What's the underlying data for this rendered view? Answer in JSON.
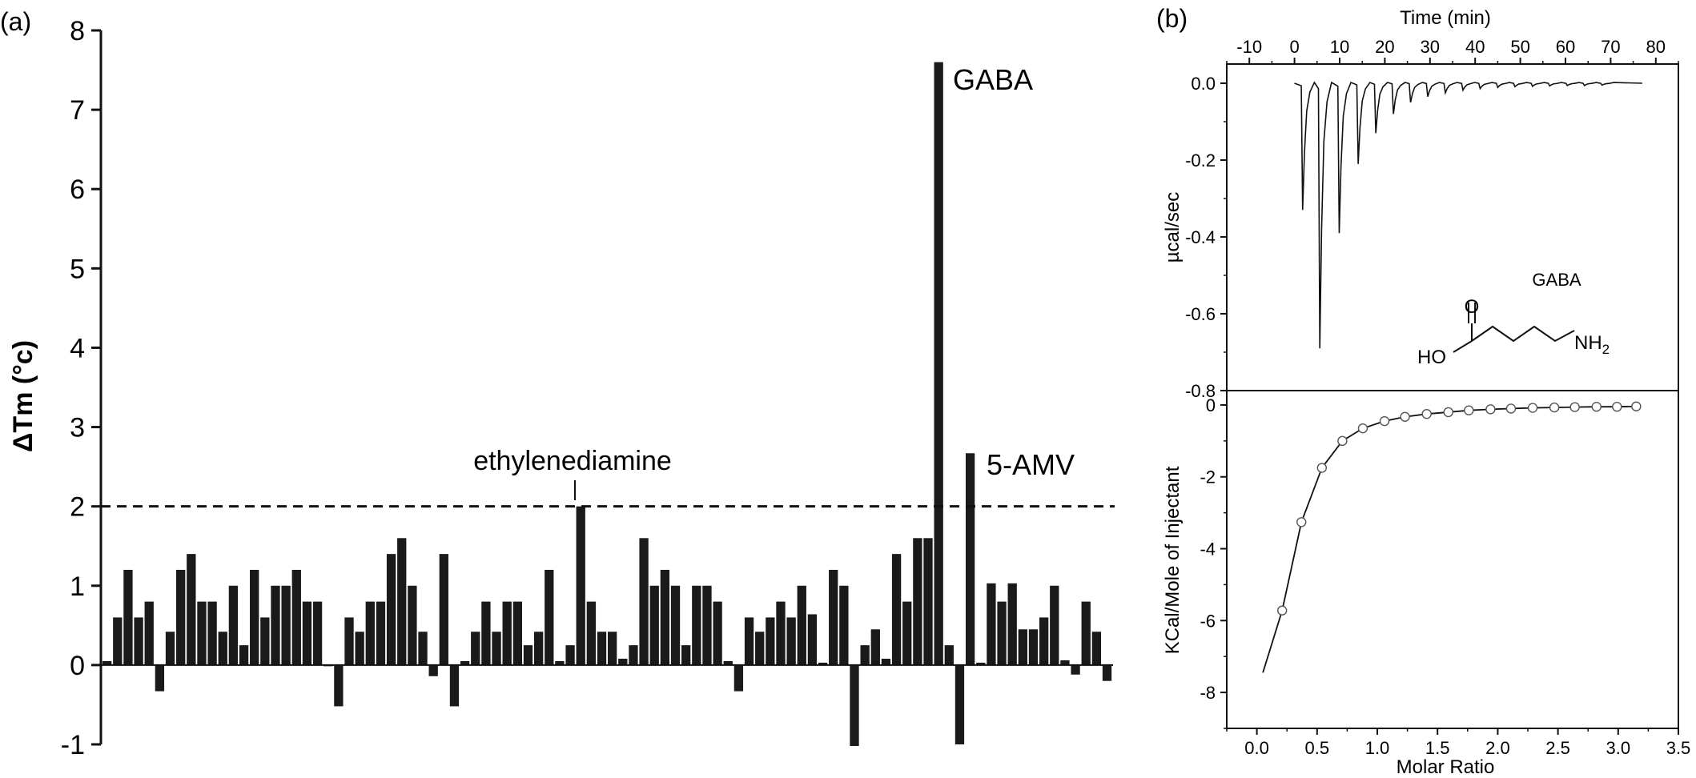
{
  "colors": {
    "ink": "#111111",
    "bar": "#1a1a1a"
  },
  "panel_a": {
    "tag": "(a)",
    "ylabel": "ΔTm (°c)",
    "annotations": {
      "gaba": "GABA",
      "amv": "5-AMV",
      "ethylenediamine": "ethylenediamine"
    }
  },
  "panel_b": {
    "tag": "(b)",
    "molecule_label": "GABA",
    "structure": {
      "o": "O",
      "ho": "HO",
      "nh2": "NH2"
    }
  },
  "chart_data": [
    {
      "type": "bar",
      "title": "",
      "xlabel": "",
      "ylabel": "ΔTm (°c)",
      "ylim": [
        -1,
        8
      ],
      "yticks": [
        -1,
        0,
        1,
        2,
        3,
        4,
        5,
        6,
        7,
        8
      ],
      "threshold": 2,
      "grid": false,
      "values": [
        0.05,
        0.6,
        1.2,
        0.6,
        0.8,
        -0.33,
        0.42,
        1.2,
        1.4,
        0.8,
        0.8,
        0.42,
        1.0,
        0.25,
        1.2,
        0.6,
        1.0,
        1.0,
        1.2,
        0.8,
        0.8,
        0.0,
        -0.52,
        0.6,
        0.42,
        0.8,
        0.8,
        1.4,
        1.6,
        1.0,
        0.42,
        -0.14,
        1.4,
        -0.52,
        0.05,
        0.42,
        0.8,
        0.42,
        0.8,
        0.8,
        0.25,
        0.42,
        1.2,
        0.05,
        0.25,
        2.0,
        0.8,
        0.42,
        0.42,
        0.08,
        0.25,
        1.6,
        1.0,
        1.2,
        1.0,
        0.25,
        1.0,
        1.0,
        0.8,
        0.05,
        -0.33,
        0.6,
        0.42,
        0.6,
        0.8,
        0.6,
        1.0,
        0.64,
        0.03,
        1.2,
        1.0,
        -1.02,
        0.25,
        0.45,
        0.08,
        1.4,
        0.8,
        1.6,
        1.6,
        7.6,
        0.25,
        -1.0,
        2.67,
        0.03,
        1.03,
        0.8,
        1.03,
        0.45,
        0.45,
        0.6,
        1.0,
        0.06,
        -0.12,
        0.8,
        0.42,
        -0.2
      ],
      "annotations": [
        {
          "text": "GABA",
          "index": 79
        },
        {
          "text": "5-AMV",
          "index": 82
        },
        {
          "text": "ethylenediamine",
          "index": 45
        }
      ]
    },
    {
      "type": "line",
      "title": "",
      "xlabel": "Time (min)",
      "ylabel": "µcal/sec",
      "xlim": [
        -15,
        85
      ],
      "ylim": [
        -0.8,
        0.05
      ],
      "xticks": [
        -10,
        0,
        10,
        20,
        30,
        40,
        50,
        60,
        70,
        80
      ],
      "yticks": [
        0.0,
        -0.2,
        -0.4,
        -0.6,
        -0.8
      ],
      "ytick_labels": [
        "0.0",
        "-0.2",
        "-0.4",
        "-0.6",
        "-0.8"
      ],
      "injections": {
        "start": 0,
        "times": [
          1.8,
          5.6,
          9.9,
          14.1,
          18.0,
          21.9,
          25.7,
          29.5,
          33.4,
          37.3,
          41.1,
          45.0,
          48.8,
          52.7,
          56.5,
          60.4,
          64.2,
          68.1
        ],
        "peaks": [
          -0.33,
          -0.69,
          -0.39,
          -0.21,
          -0.13,
          -0.08,
          -0.05,
          -0.035,
          -0.025,
          -0.018,
          -0.014,
          -0.011,
          -0.009,
          -0.008,
          -0.007,
          -0.006,
          -0.006,
          -0.005
        ],
        "end": 77
      }
    },
    {
      "type": "scatter",
      "title": "",
      "xlabel": "Molar Ratio",
      "ylabel": "KCal/Mole of Injectant",
      "xlim": [
        -0.25,
        3.5
      ],
      "ylim": [
        -9,
        0.4
      ],
      "xticks": [
        0.0,
        0.5,
        1.0,
        1.5,
        2.0,
        2.5,
        3.0,
        3.5
      ],
      "xtick_labels": [
        "0.0",
        "0.5",
        "1.0",
        "1.5",
        "2.0",
        "2.5",
        "3.0",
        "3.5"
      ],
      "yticks": [
        0,
        -2,
        -4,
        -6,
        -8
      ],
      "points": {
        "x": [
          0.21,
          0.37,
          0.54,
          0.71,
          0.88,
          1.06,
          1.23,
          1.41,
          1.59,
          1.76,
          1.94,
          2.11,
          2.29,
          2.47,
          2.64,
          2.82,
          2.99,
          3.15
        ],
        "y": [
          -5.72,
          -3.26,
          -1.75,
          -1.0,
          -0.65,
          -0.45,
          -0.33,
          -0.25,
          -0.2,
          -0.15,
          -0.12,
          -0.1,
          -0.08,
          -0.07,
          -0.06,
          -0.05,
          -0.05,
          -0.04
        ]
      },
      "fit": {
        "x": [
          0.05,
          0.21,
          0.37,
          0.54,
          0.71,
          0.88,
          1.06,
          1.23,
          1.41,
          1.59,
          1.76,
          1.94,
          2.11,
          2.29,
          2.47,
          2.64,
          2.82,
          2.99,
          3.15
        ],
        "y": [
          -7.45,
          -5.72,
          -3.26,
          -1.75,
          -1.0,
          -0.65,
          -0.45,
          -0.33,
          -0.25,
          -0.2,
          -0.15,
          -0.12,
          -0.1,
          -0.08,
          -0.07,
          -0.06,
          -0.05,
          -0.05,
          -0.04
        ]
      }
    }
  ]
}
